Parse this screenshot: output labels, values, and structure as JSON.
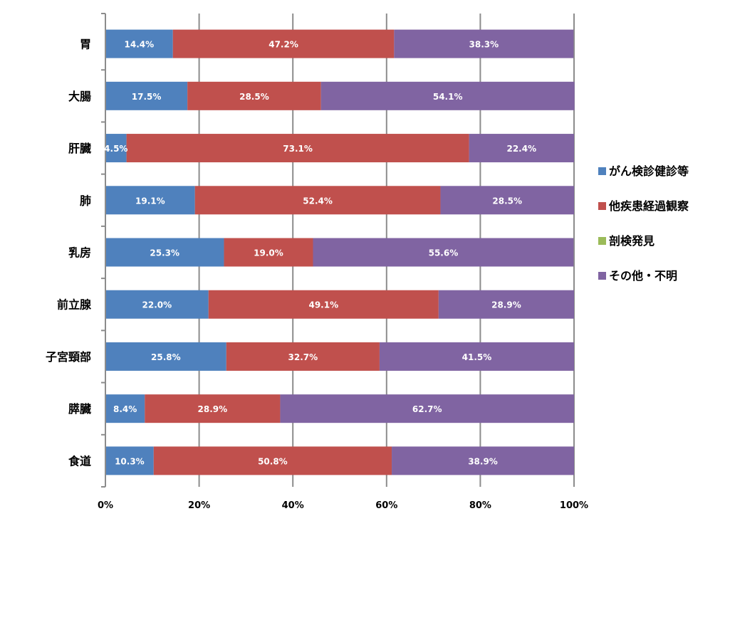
{
  "chart_data": {
    "type": "bar",
    "orientation": "horizontal",
    "stacked": "percent",
    "categories": [
      "胃",
      "大腸",
      "肝臓",
      "肺",
      "乳房",
      "前立腺",
      "子宮頸部",
      "膵臓",
      "食道"
    ],
    "series": [
      {
        "name": "がん検診健診等",
        "color": "#4f81bd",
        "values": [
          14.4,
          17.5,
          4.5,
          19.1,
          25.3,
          22.0,
          25.8,
          8.4,
          10.3
        ]
      },
      {
        "name": "他疾患経過観察",
        "color": "#c0504d",
        "values": [
          47.2,
          28.5,
          73.1,
          52.4,
          19.0,
          49.1,
          32.7,
          28.9,
          50.8
        ]
      },
      {
        "name": "剖検発見",
        "color": "#9bbb59",
        "values": [
          0,
          0,
          0,
          0,
          0,
          0,
          0,
          0,
          0
        ]
      },
      {
        "name": "その他・不明",
        "color": "#8064a2",
        "values": [
          38.3,
          54.1,
          22.4,
          28.5,
          55.6,
          28.9,
          41.5,
          62.7,
          38.9
        ]
      }
    ],
    "data_labels": [
      [
        "14.4%",
        "17.5%",
        "4.5%",
        "19.1%",
        "25.3%",
        "22.0%",
        "25.8%",
        "8.4%",
        "10.3%"
      ],
      [
        "47.2%",
        "28.5%",
        "73.1%",
        "52.4%",
        "19.0%",
        "49.1%",
        "32.7%",
        "28.9%",
        "50.8%"
      ],
      [
        null,
        null,
        null,
        null,
        null,
        null,
        null,
        null,
        null
      ],
      [
        "38.3%",
        "54.1%",
        "22.4%",
        "28.5%",
        "55.6%",
        "28.9%",
        "41.5%",
        "62.7%",
        "38.9%"
      ]
    ],
    "x_ticks": [
      "0%",
      "20%",
      "40%",
      "60%",
      "80%",
      "100%"
    ],
    "xlim": [
      0,
      100
    ],
    "grid": true,
    "legend_position": "right",
    "title": "",
    "xlabel": "",
    "ylabel": ""
  }
}
